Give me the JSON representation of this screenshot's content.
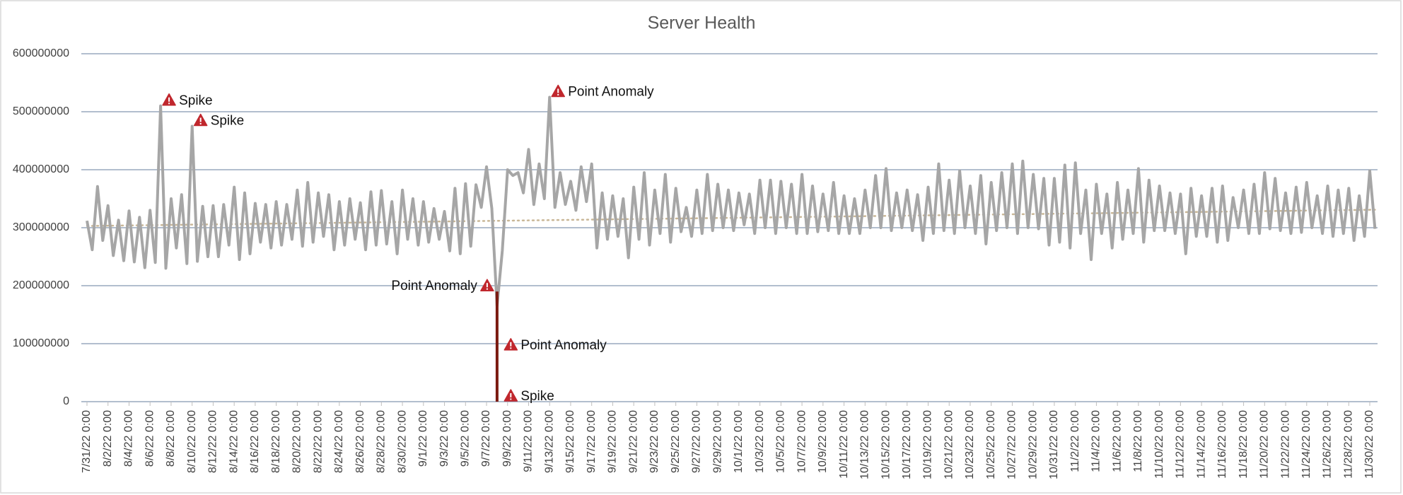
{
  "chart_data": {
    "type": "line",
    "title": "Server Health",
    "ylim": [
      0,
      600000000
    ],
    "yticks": [
      0,
      100000000,
      200000000,
      300000000,
      400000000,
      500000000,
      600000000
    ],
    "grid": true,
    "categories": [
      "7/31/22 0:00",
      null,
      null,
      null,
      "8/2/22 0:00",
      null,
      null,
      null,
      "8/4/22 0:00",
      null,
      null,
      null,
      "8/6/22 0:00",
      null,
      null,
      null,
      "8/8/22 0:00",
      null,
      null,
      null,
      "8/10/22 0:00",
      null,
      null,
      null,
      "8/12/22 0:00",
      null,
      null,
      null,
      "8/14/22 0:00",
      null,
      null,
      null,
      "8/16/22 0:00",
      null,
      null,
      null,
      "8/18/22 0:00",
      null,
      null,
      null,
      "8/20/22 0:00",
      null,
      null,
      null,
      "8/22/22 0:00",
      null,
      null,
      null,
      "8/24/22 0:00",
      null,
      null,
      null,
      "8/26/22 0:00",
      null,
      null,
      null,
      "8/28/22 0:00",
      null,
      null,
      null,
      "8/30/22 0:00",
      null,
      null,
      null,
      "9/1/22 0:00",
      null,
      null,
      null,
      "9/3/22 0:00",
      null,
      null,
      null,
      "9/5/22 0:00",
      null,
      null,
      null,
      "9/7/22 0:00",
      null,
      null,
      null,
      "9/9/22 0:00",
      null,
      null,
      null,
      "9/11/22 0:00",
      null,
      null,
      null,
      "9/13/22 0:00",
      null,
      null,
      null,
      "9/15/22 0:00",
      null,
      null,
      null,
      "9/17/22 0:00",
      null,
      null,
      null,
      "9/19/22 0:00",
      null,
      null,
      null,
      "9/21/22 0:00",
      null,
      null,
      null,
      "9/23/22 0:00",
      null,
      null,
      null,
      "9/25/22 0:00",
      null,
      null,
      null,
      "9/27/22 0:00",
      null,
      null,
      null,
      "9/29/22 0:00",
      null,
      null,
      null,
      "10/1/22 0:00",
      null,
      null,
      null,
      "10/3/22 0:00",
      null,
      null,
      null,
      "10/5/22 0:00",
      null,
      null,
      null,
      "10/7/22 0:00",
      null,
      null,
      null,
      "10/9/22 0:00",
      null,
      null,
      null,
      "10/11/22 0:00",
      null,
      null,
      null,
      "10/13/22 0:00",
      null,
      null,
      null,
      "10/15/22 0:00",
      null,
      null,
      null,
      "10/17/22 0:00",
      null,
      null,
      null,
      "10/19/22 0:00",
      null,
      null,
      null,
      "10/21/22 0:00",
      null,
      null,
      null,
      "10/23/22 0:00",
      null,
      null,
      null,
      "10/25/22 0:00",
      null,
      null,
      null,
      "10/27/22 0:00",
      null,
      null,
      null,
      "10/29/22 0:00",
      null,
      null,
      null,
      "10/31/22 0:00",
      null,
      null,
      null,
      "11/2/22 0:00",
      null,
      null,
      null,
      "11/4/22 0:00",
      null,
      null,
      null,
      "11/6/22 0:00",
      null,
      null,
      null,
      "11/8/22 0:00",
      null,
      null,
      null,
      "11/10/22 0:00",
      null,
      null,
      null,
      "11/12/22 0:00",
      null,
      null,
      null,
      "11/14/22 0:00",
      null,
      null,
      null,
      "11/16/22 0:00",
      null,
      null,
      null,
      "11/18/22 0:00",
      null,
      null,
      null,
      "11/20/22 0:00",
      null,
      null,
      null,
      "11/22/22 0:00",
      null,
      null,
      null,
      "11/24/22 0:00",
      null,
      null,
      null,
      "11/26/22 0:00",
      null,
      null,
      null,
      "11/28/22 0:00",
      null,
      null,
      null,
      "11/30/22 0:00",
      null
    ],
    "series": [
      {
        "color": "#a6a6a6",
        "values": [
          312000000,
          262000000,
          371000000,
          278000000,
          338000000,
          252000000,
          313000000,
          243000000,
          329000000,
          241000000,
          318000000,
          231000000,
          330000000,
          240000000,
          510000000,
          230000000,
          350000000,
          265000000,
          357000000,
          238000000,
          475000000,
          242000000,
          337000000,
          250000000,
          338000000,
          250000000,
          340000000,
          270000000,
          370000000,
          245000000,
          360000000,
          255000000,
          342000000,
          275000000,
          340000000,
          265000000,
          345000000,
          270000000,
          340000000,
          280000000,
          365000000,
          268000000,
          378000000,
          275000000,
          360000000,
          285000000,
          357000000,
          262000000,
          345000000,
          270000000,
          350000000,
          280000000,
          343000000,
          262000000,
          362000000,
          270000000,
          364000000,
          272000000,
          345000000,
          255000000,
          365000000,
          280000000,
          350000000,
          270000000,
          345000000,
          275000000,
          333000000,
          280000000,
          328000000,
          260000000,
          368000000,
          255000000,
          376000000,
          268000000,
          374000000,
          335000000,
          405000000,
          333000000,
          165000000,
          260000000,
          400000000,
          390000000,
          395000000,
          360000000,
          435000000,
          340000000,
          410000000,
          350000000,
          525000000,
          335000000,
          395000000,
          340000000,
          380000000,
          330000000,
          405000000,
          345000000,
          410000000,
          265000000,
          360000000,
          280000000,
          355000000,
          285000000,
          350000000,
          248000000,
          370000000,
          280000000,
          395000000,
          270000000,
          365000000,
          290000000,
          392000000,
          275000000,
          368000000,
          293000000,
          335000000,
          285000000,
          365000000,
          290000000,
          392000000,
          295000000,
          375000000,
          300000000,
          365000000,
          295000000,
          360000000,
          305000000,
          358000000,
          290000000,
          382000000,
          300000000,
          382000000,
          290000000,
          380000000,
          300000000,
          375000000,
          290000000,
          392000000,
          290000000,
          372000000,
          293000000,
          358000000,
          295000000,
          378000000,
          290000000,
          355000000,
          290000000,
          350000000,
          290000000,
          365000000,
          300000000,
          390000000,
          300000000,
          402000000,
          295000000,
          360000000,
          300000000,
          365000000,
          295000000,
          357000000,
          278000000,
          370000000,
          290000000,
          410000000,
          295000000,
          382000000,
          290000000,
          398000000,
          300000000,
          372000000,
          290000000,
          390000000,
          272000000,
          378000000,
          295000000,
          395000000,
          300000000,
          410000000,
          290000000,
          415000000,
          300000000,
          392000000,
          298000000,
          385000000,
          270000000,
          385000000,
          275000000,
          408000000,
          265000000,
          412000000,
          290000000,
          365000000,
          245000000,
          375000000,
          290000000,
          358000000,
          265000000,
          378000000,
          280000000,
          365000000,
          290000000,
          402000000,
          275000000,
          382000000,
          295000000,
          372000000,
          295000000,
          360000000,
          290000000,
          358000000,
          255000000,
          368000000,
          285000000,
          355000000,
          285000000,
          368000000,
          275000000,
          372000000,
          278000000,
          352000000,
          300000000,
          365000000,
          290000000,
          375000000,
          290000000,
          395000000,
          298000000,
          385000000,
          295000000,
          360000000,
          290000000,
          370000000,
          292000000,
          378000000,
          300000000,
          355000000,
          290000000,
          372000000,
          285000000,
          365000000,
          290000000,
          368000000,
          278000000,
          355000000,
          285000000,
          398000000,
          298000000
        ]
      }
    ],
    "highlight": {
      "color": "#7b1a10",
      "x_index": 78,
      "values": [
        190000000,
        0
      ]
    },
    "trendline": {
      "color": "#c9b797",
      "start": 303000000,
      "end": 331000000
    },
    "annotations": [
      {
        "text": "Spike",
        "index": 14,
        "value": 510000000
      },
      {
        "text": "Spike",
        "index": 20,
        "value": 475000000
      },
      {
        "text": "Point Anomaly",
        "index": 88,
        "value": 525000000
      },
      {
        "text": "Point Anomaly",
        "index": 78,
        "value": 190000000
      },
      {
        "text": "Point Anomaly",
        "index": 79,
        "value": 88000000
      },
      {
        "text": "Spike",
        "index": 79,
        "value": 0
      }
    ]
  }
}
